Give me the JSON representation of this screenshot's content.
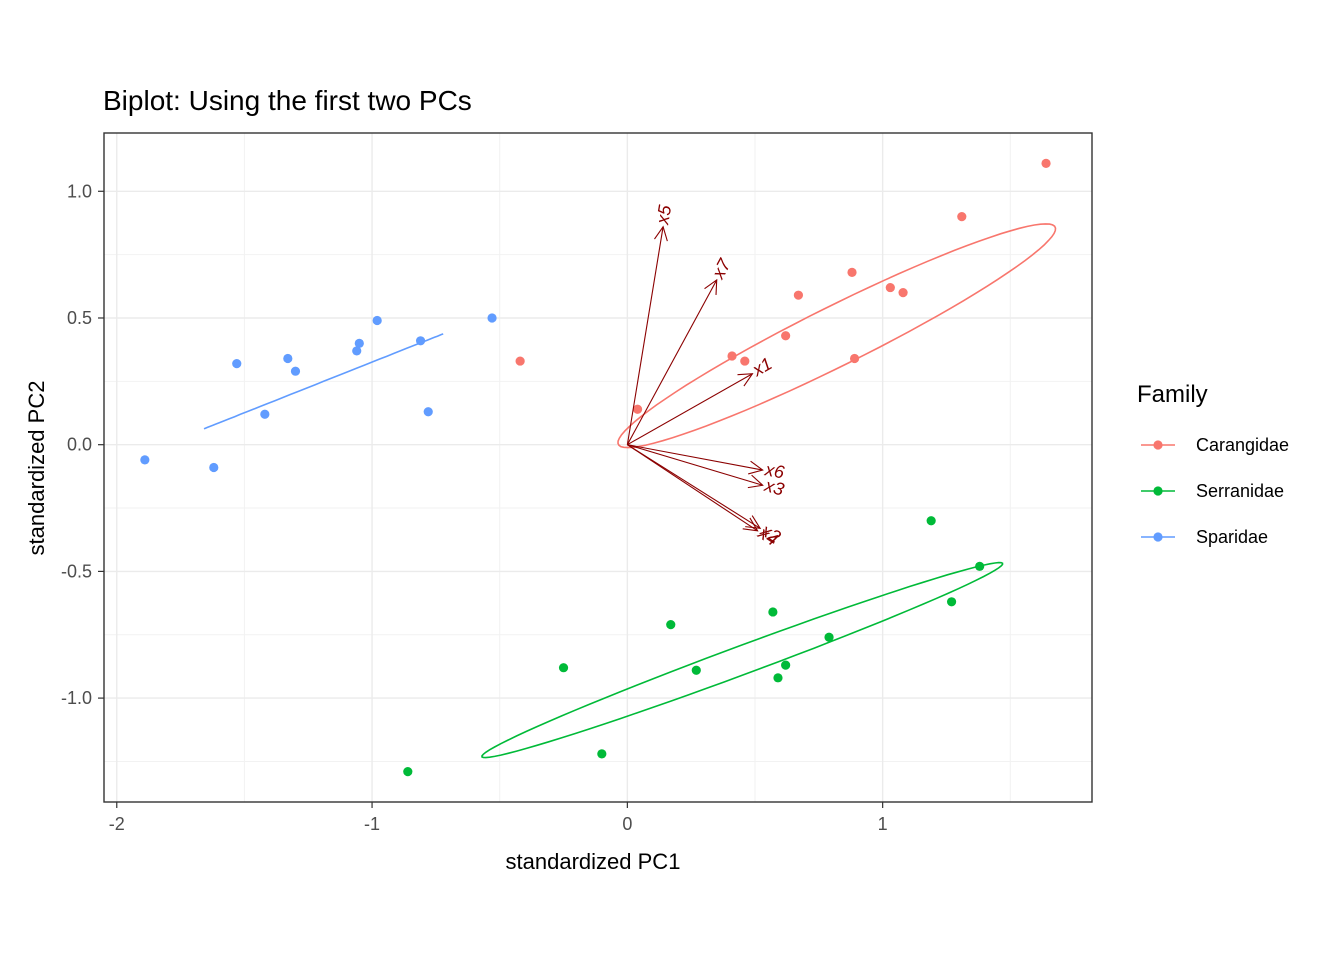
{
  "chart_data": {
    "type": "scatter",
    "title": "Biplot: Using the first two PCs",
    "xlabel": "standardized PC1",
    "ylabel": "standardized PC2",
    "xlim": [
      -2.05,
      1.82
    ],
    "ylim": [
      -1.41,
      1.23
    ],
    "x_ticks": [
      -2,
      -1,
      0,
      1
    ],
    "x_tick_labels": [
      "-2",
      "-1",
      "0",
      "1"
    ],
    "y_ticks": [
      -1.0,
      -0.5,
      0.0,
      0.5,
      1.0
    ],
    "y_tick_labels": [
      "-1.0",
      "-0.5",
      "0.0",
      "0.5",
      "1.0"
    ],
    "grid": true,
    "legend": {
      "title": "Family",
      "position": "right"
    },
    "series": [
      {
        "name": "Carangidae",
        "color": "#f8766d",
        "points": [
          [
            1.64,
            1.11
          ],
          [
            1.31,
            0.9
          ],
          [
            0.88,
            0.68
          ],
          [
            1.03,
            0.62
          ],
          [
            1.08,
            0.6
          ],
          [
            0.67,
            0.59
          ],
          [
            0.62,
            0.43
          ],
          [
            0.41,
            0.35
          ],
          [
            0.46,
            0.33
          ],
          [
            0.89,
            0.34
          ],
          [
            -0.42,
            0.33
          ],
          [
            0.04,
            0.14
          ]
        ],
        "ellipse": {
          "center": [
            0.82,
            0.43
          ],
          "points": [
            [
              1.56,
              0.94
            ],
            [
              -0.14,
              0.07
            ],
            [
              1.37,
              0.49
            ],
            [
              0.27,
              0.36
            ]
          ]
        }
      },
      {
        "name": "Serranidae",
        "color": "#00ba38",
        "points": [
          [
            1.19,
            -0.3
          ],
          [
            1.38,
            -0.48
          ],
          [
            1.27,
            -0.62
          ],
          [
            0.57,
            -0.66
          ],
          [
            0.79,
            -0.76
          ],
          [
            0.17,
            -0.71
          ],
          [
            0.62,
            -0.87
          ],
          [
            0.59,
            -0.92
          ],
          [
            0.27,
            -0.89
          ],
          [
            -0.25,
            -0.88
          ],
          [
            -0.1,
            -1.22
          ],
          [
            -0.86,
            -1.29
          ]
        ],
        "ellipse": {
          "center": [
            0.45,
            -0.85
          ],
          "points": [
            [
              1.47,
              -0.41
            ],
            [
              -0.57,
              -1.17
            ],
            [
              0.65,
              -0.53
            ],
            [
              0.25,
              -1.21
            ]
          ]
        }
      },
      {
        "name": "Sparidae",
        "color": "#619cff",
        "points": [
          [
            -0.53,
            0.5
          ],
          [
            -0.98,
            0.49
          ],
          [
            -0.81,
            0.41
          ],
          [
            -1.05,
            0.4
          ],
          [
            -1.06,
            0.37
          ],
          [
            -1.33,
            0.34
          ],
          [
            -1.53,
            0.32
          ],
          [
            -1.3,
            0.29
          ],
          [
            -0.78,
            0.13
          ],
          [
            -1.42,
            0.12
          ],
          [
            -1.89,
            -0.06
          ],
          [
            -1.62,
            -0.09
          ]
        ],
        "ellipse": {
          "center": [
            -1.19,
            0.25
          ],
          "points": [
            [
              -0.6,
              0.51
            ],
            [
              -1.78,
              -0.01
            ],
            [
              -1.04,
              0.45
            ],
            [
              -1.34,
              0.05
            ]
          ]
        }
      }
    ],
    "arrows": [
      {
        "label": "x5",
        "x": 0.14,
        "y": 0.86
      },
      {
        "label": "x7",
        "x": 0.35,
        "y": 0.65
      },
      {
        "label": "x1",
        "x": 0.49,
        "y": 0.28
      },
      {
        "label": "x6",
        "x": 0.53,
        "y": -0.1
      },
      {
        "label": "x3",
        "x": 0.53,
        "y": -0.16
      },
      {
        "label": "x2",
        "x": 0.52,
        "y": -0.33
      },
      {
        "label": "x4",
        "x": 0.51,
        "y": -0.34
      }
    ],
    "arrow_color": "#8b0000"
  }
}
